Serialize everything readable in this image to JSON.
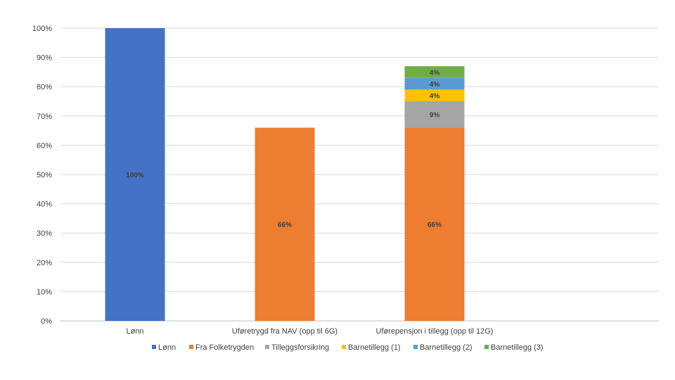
{
  "chart_data": {
    "type": "bar",
    "stacked": true,
    "categories": [
      "Lønn",
      "Uføretrygd fra NAV (opp til 6G)",
      "Uførepensjon i tillegg  (opp til 12G)"
    ],
    "series": [
      {
        "name": "Lønn",
        "color": "#4472C4",
        "values": [
          100,
          0,
          0
        ],
        "labels": [
          "100%",
          "",
          ""
        ]
      },
      {
        "name": "Fra Folketrygden",
        "color": "#ED7D31",
        "values": [
          0,
          66,
          66
        ],
        "labels": [
          "",
          "66%",
          "66%"
        ]
      },
      {
        "name": "Tilleggsforsikring",
        "color": "#A5A5A5",
        "values": [
          0,
          0,
          9
        ],
        "labels": [
          "",
          "",
          "9%"
        ]
      },
      {
        "name": "Barnetillegg (1)",
        "color": "#FFC000",
        "values": [
          0,
          0,
          4
        ],
        "labels": [
          "",
          "",
          "4%"
        ]
      },
      {
        "name": "Barnetillegg (2)",
        "color": "#5B9BD5",
        "values": [
          0,
          0,
          4
        ],
        "labels": [
          "",
          "",
          "4%"
        ]
      },
      {
        "name": "Barnetillegg (3)",
        "color": "#70AD47",
        "values": [
          0,
          0,
          4
        ],
        "labels": [
          "",
          "",
          "4%"
        ]
      }
    ],
    "yticks": [
      "0%",
      "10%",
      "20%",
      "30%",
      "40%",
      "50%",
      "60%",
      "70%",
      "80%",
      "90%",
      "100%"
    ],
    "ylim": [
      0,
      100
    ],
    "grid": true,
    "legend": "bottom"
  }
}
